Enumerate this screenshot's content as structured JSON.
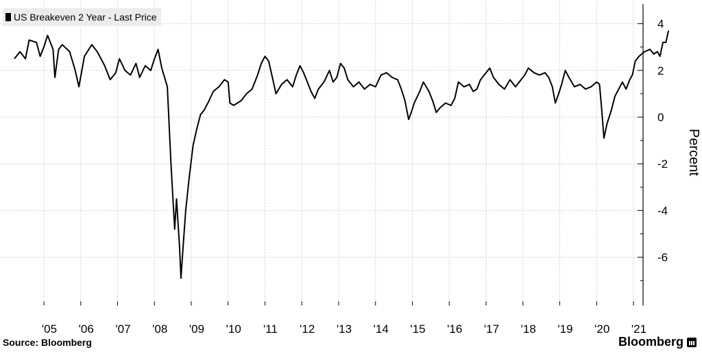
{
  "legend": {
    "label": "US Breakeven 2 Year - Last Price"
  },
  "footer": {
    "source": "Source: Bloomberg",
    "brand": "Bloomberg"
  },
  "chart_data": {
    "type": "line",
    "title": "",
    "xlabel": "",
    "ylabel": "Percent",
    "ylim": [
      -8,
      5
    ],
    "xlim": [
      2004.2,
      2021.95
    ],
    "grid": true,
    "y_ticks": [
      -6,
      -4,
      -2,
      0,
      2,
      4
    ],
    "x_ticks": [
      {
        "label": "'05",
        "value": 2005
      },
      {
        "label": "'06",
        "value": 2006
      },
      {
        "label": "'07",
        "value": 2007
      },
      {
        "label": "'08",
        "value": 2008
      },
      {
        "label": "'09",
        "value": 2009
      },
      {
        "label": "'10",
        "value": 2010
      },
      {
        "label": "'11",
        "value": 2011
      },
      {
        "label": "'12",
        "value": 2012
      },
      {
        "label": "'13",
        "value": 2013
      },
      {
        "label": "'14",
        "value": 2014
      },
      {
        "label": "'15",
        "value": 2015
      },
      {
        "label": "'16",
        "value": 2016
      },
      {
        "label": "'17",
        "value": 2017
      },
      {
        "label": "'18",
        "value": 2018
      },
      {
        "label": "'19",
        "value": 2019
      },
      {
        "label": "'20",
        "value": 2020
      },
      {
        "label": "'21",
        "value": 2021
      }
    ],
    "series": [
      {
        "name": "US Breakeven 2 Year - Last Price",
        "color": "#000000",
        "points": [
          [
            2004.2,
            2.5
          ],
          [
            2004.35,
            2.8
          ],
          [
            2004.5,
            2.5
          ],
          [
            2004.6,
            3.3
          ],
          [
            2004.8,
            3.2
          ],
          [
            2004.9,
            2.6
          ],
          [
            2005.0,
            3.0
          ],
          [
            2005.1,
            3.5
          ],
          [
            2005.25,
            2.9
          ],
          [
            2005.3,
            1.7
          ],
          [
            2005.4,
            2.9
          ],
          [
            2005.5,
            3.1
          ],
          [
            2005.7,
            2.8
          ],
          [
            2005.85,
            2.0
          ],
          [
            2005.95,
            1.3
          ],
          [
            2006.1,
            2.6
          ],
          [
            2006.3,
            3.1
          ],
          [
            2006.45,
            2.8
          ],
          [
            2006.65,
            2.2
          ],
          [
            2006.8,
            1.6
          ],
          [
            2006.95,
            1.9
          ],
          [
            2007.05,
            2.5
          ],
          [
            2007.2,
            2.0
          ],
          [
            2007.35,
            1.8
          ],
          [
            2007.5,
            2.3
          ],
          [
            2007.6,
            1.7
          ],
          [
            2007.75,
            2.2
          ],
          [
            2007.9,
            2.0
          ],
          [
            2008.0,
            2.5
          ],
          [
            2008.1,
            2.9
          ],
          [
            2008.2,
            2.1
          ],
          [
            2008.35,
            1.3
          ],
          [
            2008.45,
            -2.0
          ],
          [
            2008.55,
            -4.8
          ],
          [
            2008.6,
            -3.5
          ],
          [
            2008.68,
            -5.5
          ],
          [
            2008.72,
            -6.9
          ],
          [
            2008.78,
            -5.5
          ],
          [
            2008.85,
            -4.0
          ],
          [
            2008.95,
            -2.5
          ],
          [
            2009.05,
            -1.2
          ],
          [
            2009.15,
            -0.5
          ],
          [
            2009.25,
            0.1
          ],
          [
            2009.35,
            0.3
          ],
          [
            2009.45,
            0.6
          ],
          [
            2009.6,
            1.1
          ],
          [
            2009.75,
            1.3
          ],
          [
            2009.9,
            1.6
          ],
          [
            2010.0,
            1.5
          ],
          [
            2010.05,
            0.6
          ],
          [
            2010.15,
            0.5
          ],
          [
            2010.35,
            0.7
          ],
          [
            2010.5,
            1.0
          ],
          [
            2010.65,
            1.2
          ],
          [
            2010.8,
            1.8
          ],
          [
            2010.9,
            2.3
          ],
          [
            2011.0,
            2.6
          ],
          [
            2011.1,
            2.4
          ],
          [
            2011.2,
            1.7
          ],
          [
            2011.3,
            1.0
          ],
          [
            2011.45,
            1.4
          ],
          [
            2011.6,
            1.6
          ],
          [
            2011.75,
            1.3
          ],
          [
            2011.85,
            1.8
          ],
          [
            2011.95,
            2.2
          ],
          [
            2012.05,
            1.9
          ],
          [
            2012.15,
            1.5
          ],
          [
            2012.25,
            1.1
          ],
          [
            2012.35,
            0.8
          ],
          [
            2012.45,
            1.2
          ],
          [
            2012.6,
            1.5
          ],
          [
            2012.75,
            2.0
          ],
          [
            2012.85,
            1.5
          ],
          [
            2012.95,
            1.7
          ],
          [
            2013.05,
            2.3
          ],
          [
            2013.15,
            2.1
          ],
          [
            2013.25,
            1.6
          ],
          [
            2013.4,
            1.3
          ],
          [
            2013.55,
            1.5
          ],
          [
            2013.7,
            1.2
          ],
          [
            2013.85,
            1.4
          ],
          [
            2014.0,
            1.3
          ],
          [
            2014.15,
            1.8
          ],
          [
            2014.3,
            1.9
          ],
          [
            2014.45,
            1.7
          ],
          [
            2014.6,
            1.6
          ],
          [
            2014.7,
            1.2
          ],
          [
            2014.8,
            0.7
          ],
          [
            2014.9,
            -0.1
          ],
          [
            2014.97,
            0.2
          ],
          [
            2015.05,
            0.6
          ],
          [
            2015.2,
            1.1
          ],
          [
            2015.3,
            1.5
          ],
          [
            2015.45,
            1.1
          ],
          [
            2015.55,
            0.7
          ],
          [
            2015.65,
            0.2
          ],
          [
            2015.75,
            0.4
          ],
          [
            2015.9,
            0.6
          ],
          [
            2016.05,
            0.5
          ],
          [
            2016.15,
            0.8
          ],
          [
            2016.25,
            1.5
          ],
          [
            2016.4,
            1.3
          ],
          [
            2016.55,
            1.4
          ],
          [
            2016.65,
            1.1
          ],
          [
            2016.75,
            1.2
          ],
          [
            2016.85,
            1.6
          ],
          [
            2017.0,
            1.9
          ],
          [
            2017.1,
            2.1
          ],
          [
            2017.2,
            1.7
          ],
          [
            2017.35,
            1.4
          ],
          [
            2017.5,
            1.2
          ],
          [
            2017.65,
            1.6
          ],
          [
            2017.8,
            1.3
          ],
          [
            2017.95,
            1.6
          ],
          [
            2018.05,
            1.8
          ],
          [
            2018.15,
            2.1
          ],
          [
            2018.3,
            1.9
          ],
          [
            2018.45,
            1.8
          ],
          [
            2018.6,
            1.9
          ],
          [
            2018.7,
            1.7
          ],
          [
            2018.8,
            1.3
          ],
          [
            2018.88,
            0.6
          ],
          [
            2018.97,
            1.0
          ],
          [
            2019.05,
            1.4
          ],
          [
            2019.15,
            2.0
          ],
          [
            2019.25,
            1.7
          ],
          [
            2019.4,
            1.3
          ],
          [
            2019.55,
            1.4
          ],
          [
            2019.7,
            1.2
          ],
          [
            2019.85,
            1.3
          ],
          [
            2020.0,
            1.5
          ],
          [
            2020.08,
            1.4
          ],
          [
            2020.13,
            0.5
          ],
          [
            2020.2,
            -0.9
          ],
          [
            2020.28,
            -0.3
          ],
          [
            2020.4,
            0.3
          ],
          [
            2020.5,
            0.9
          ],
          [
            2020.6,
            1.2
          ],
          [
            2020.7,
            1.5
          ],
          [
            2020.8,
            1.2
          ],
          [
            2020.9,
            1.6
          ],
          [
            2020.97,
            1.8
          ],
          [
            2021.05,
            2.4
          ],
          [
            2021.15,
            2.6
          ],
          [
            2021.3,
            2.8
          ],
          [
            2021.45,
            2.9
          ],
          [
            2021.55,
            2.7
          ],
          [
            2021.65,
            2.8
          ],
          [
            2021.72,
            2.6
          ],
          [
            2021.8,
            3.2
          ],
          [
            2021.88,
            3.2
          ],
          [
            2021.95,
            3.7
          ]
        ]
      }
    ]
  }
}
